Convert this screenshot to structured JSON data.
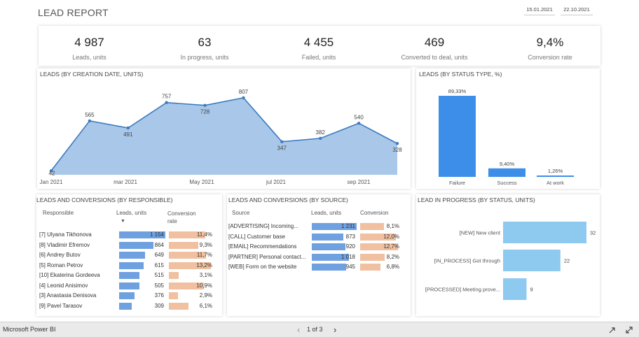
{
  "report": {
    "title": "LEAD REPORT",
    "date_from": "15.01.2021",
    "date_to": "22.10.2021"
  },
  "kpis": [
    {
      "value": "4 987",
      "label": "Leads, units"
    },
    {
      "value": "63",
      "label": "In progress, units"
    },
    {
      "value": "4 455",
      "label": "Failed, units"
    },
    {
      "value": "469",
      "label": "Converted to deal, units"
    },
    {
      "value": "9,4%",
      "label": "Conversion rate"
    }
  ],
  "leads_by_date": {
    "title": "LEADS (BY CREATION DATE, UNITS)",
    "x_labels": [
      "Jan 2021",
      "mar 2021",
      "May 2021",
      "jul 2021",
      "sep 2021"
    ],
    "chart_data": {
      "type": "area",
      "x": [
        "Jan 2021",
        "Feb 2021",
        "Mar 2021",
        "Apr 2021",
        "May 2021",
        "Jun 2021",
        "Jul 2021",
        "Aug 2021",
        "Sep 2021",
        "Oct 2021"
      ],
      "values": [
        42,
        565,
        491,
        757,
        728,
        807,
        347,
        382,
        540,
        328
      ],
      "labels": [
        "42",
        "565",
        "491",
        "757",
        "728",
        "807",
        "347",
        "382",
        "540",
        "328"
      ]
    }
  },
  "leads_by_status": {
    "title": "LEADS (BY STATUS TYPE, %)",
    "chart_data": {
      "type": "bar",
      "categories": [
        "Failure",
        "Success",
        "At work"
      ],
      "values": [
        89.33,
        9.4,
        1.26
      ],
      "labels": [
        "89,33%",
        "9,40%",
        "1,26%"
      ]
    }
  },
  "by_responsible": {
    "title": "LEADS AND CONVERSIONS (BY RESPONSIBLE)",
    "col_responsible": "Responsible",
    "col_leads": "Leads, units",
    "col_conv": "Conversion rate",
    "sort_indicator": "▼",
    "rows": [
      {
        "name": "[7] Ulyana Tikhonova",
        "leads": 1154,
        "leads_label": "1 154",
        "conv": 11.4,
        "conv_label": "11,4%"
      },
      {
        "name": "[8] Vladimir Efremov",
        "leads": 864,
        "leads_label": "864",
        "conv": 9.3,
        "conv_label": "9,3%"
      },
      {
        "name": "[6] Andrey Butov",
        "leads": 649,
        "leads_label": "649",
        "conv": 11.7,
        "conv_label": "11,7%"
      },
      {
        "name": "[5] Roman Petrov",
        "leads": 615,
        "leads_label": "615",
        "conv": 13.2,
        "conv_label": "13,2%"
      },
      {
        "name": "[10] Ekaterina Gordeeva",
        "leads": 515,
        "leads_label": "515",
        "conv": 3.1,
        "conv_label": "3,1%"
      },
      {
        "name": "[4] Leonid Anisimov",
        "leads": 505,
        "leads_label": "505",
        "conv": 10.9,
        "conv_label": "10,9%"
      },
      {
        "name": "[3] Anastasia Denisova",
        "leads": 376,
        "leads_label": "376",
        "conv": 2.9,
        "conv_label": "2,9%"
      },
      {
        "name": "[9] Pavel Tarasov",
        "leads": 309,
        "leads_label": "309",
        "conv": 6.1,
        "conv_label": "6,1%"
      }
    ]
  },
  "by_source": {
    "title": "LEADS AND CONVERSIONS (BY SOURCE)",
    "col_source": "Source",
    "col_leads": "Leads, units",
    "col_conv": "Conversion",
    "rows": [
      {
        "name": "[ADVERTISING] Incoming...",
        "leads": 1231,
        "leads_label": "1 231",
        "conv": 8.1,
        "conv_label": "8,1%"
      },
      {
        "name": "[CALL] Customer base",
        "leads": 873,
        "leads_label": "873",
        "conv": 12.0,
        "conv_label": "12,0%"
      },
      {
        "name": "[EMAIL] Recommendations",
        "leads": 920,
        "leads_label": "920",
        "conv": 12.7,
        "conv_label": "12,7%"
      },
      {
        "name": "[PARTNER] Personal contact...",
        "leads": 1018,
        "leads_label": "1 018",
        "conv": 8.2,
        "conv_label": "8,2%"
      },
      {
        "name": "[WEB] Form on the website",
        "leads": 945,
        "leads_label": "945",
        "conv": 6.8,
        "conv_label": "6,8%"
      }
    ]
  },
  "in_progress": {
    "title": "LEAD IN PROGRESS (BY STATUS, UNITS)",
    "chart_data": {
      "type": "bar",
      "categories": [
        "[NEW] New client",
        "[IN_PROCESS] Got through",
        "[PROCESSED] Meeting prove..."
      ],
      "values": [
        32,
        22,
        9
      ],
      "labels": [
        "32",
        "22",
        "9"
      ]
    }
  },
  "footer": {
    "app_name": "Microsoft Power BI",
    "page_indicator": "1 of 3",
    "prev": "‹",
    "next": "›"
  },
  "colors": {
    "area_fill": "#a9c7e8",
    "area_line": "#3c7bbf",
    "bar_status": "#3d8ee8",
    "bar_progress": "#8ec9f0",
    "bar_leads": "#6fa0e0",
    "bar_conv": "#f0c0a0"
  }
}
